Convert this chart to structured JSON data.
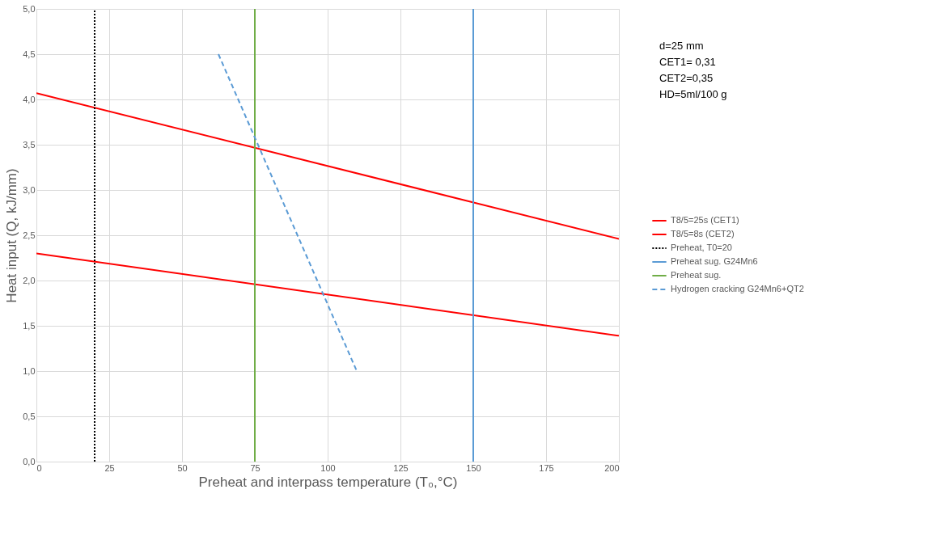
{
  "chart_data": {
    "type": "line",
    "xlabel": "Preheat and interpass temperature (T₀,°C)",
    "ylabel": "Heat input (Q, kJ/mm)",
    "xlim": [
      0,
      200
    ],
    "xticks": [
      0,
      25,
      50,
      75,
      100,
      125,
      150,
      175,
      200
    ],
    "ylim": [
      0,
      5
    ],
    "yticks": [
      {
        "value": 0,
        "label": "0,0"
      },
      {
        "value": 0.5,
        "label": "0,5"
      },
      {
        "value": 1,
        "label": "1,0"
      },
      {
        "value": 1.5,
        "label": "1,5"
      },
      {
        "value": 2,
        "label": "2,0"
      },
      {
        "value": 2.5,
        "label": "2,5"
      },
      {
        "value": 3,
        "label": "3,0"
      },
      {
        "value": 3.5,
        "label": "3,5"
      },
      {
        "value": 4,
        "label": "4,0"
      },
      {
        "value": 4.5,
        "label": "4,5"
      },
      {
        "value": 5,
        "label": "5,0"
      }
    ],
    "grid": true,
    "legend": "right",
    "annotations": [
      "d=25 mm",
      "CET1= 0,31",
      "CET2=0,35",
      "HD=5ml/100 g"
    ],
    "series": [
      {
        "name": "T8/5=25s (CET1)",
        "color": "#ff0000",
        "line_style": "solid",
        "x": [
          0,
          200
        ],
        "values": [
          4.07,
          2.46
        ]
      },
      {
        "name": "T8/5=8s (CET2)",
        "color": "#ff0000",
        "line_style": "solid",
        "x": [
          0,
          200
        ],
        "values": [
          2.3,
          1.39
        ]
      },
      {
        "name": "Preheat, T0=20",
        "color": "#000000",
        "line_style": "dotted",
        "x": [
          20,
          20
        ],
        "values": [
          0,
          5
        ]
      },
      {
        "name": "Preheat sug. G24Mn6",
        "color": "#5b9bd5",
        "line_style": "solid",
        "x": [
          150,
          150
        ],
        "values": [
          0,
          5
        ]
      },
      {
        "name": "Preheat sug.",
        "color": "#70ad47",
        "line_style": "solid",
        "x": [
          75,
          75
        ],
        "values": [
          0,
          5
        ]
      },
      {
        "name": "Hydrogen cracking G24Mn6+QT2",
        "color": "#5b9bd5",
        "line_style": "dashed",
        "x": [
          62.5,
          110
        ],
        "values": [
          4.5,
          1.0
        ]
      }
    ]
  }
}
